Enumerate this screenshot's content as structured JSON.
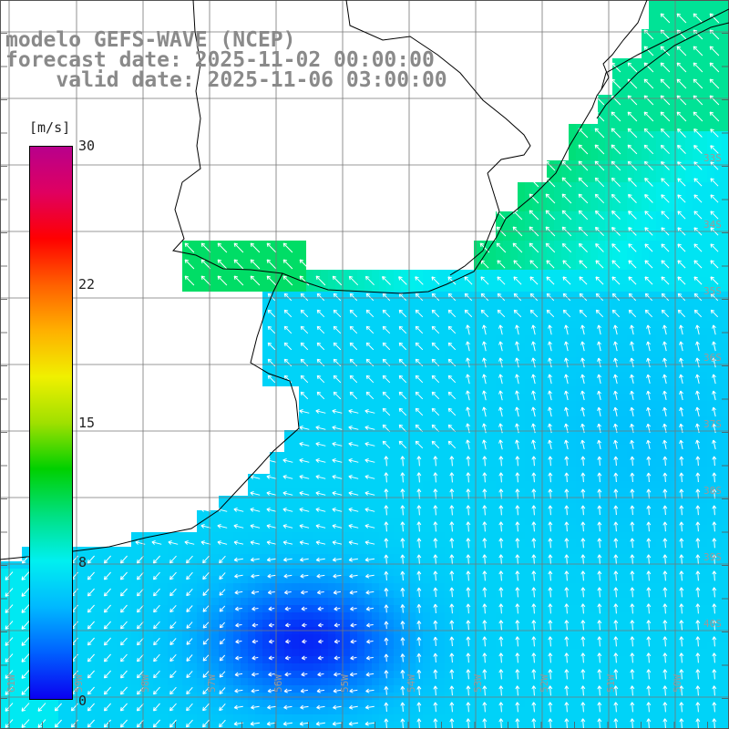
{
  "header": {
    "line1": "modelo GEFS-WAVE (NCEP)",
    "line2": "forecast date: 2025-11-02 00:00:00",
    "line3": "    valid date: 2025-11-06 03:00:00"
  },
  "colorbar": {
    "unit": "[m/s]",
    "ticks": [
      "30",
      "22",
      "15",
      "8",
      "0"
    ],
    "range": [
      0,
      30
    ],
    "stops": [
      "#0a00f0",
      "#0060ff",
      "#00b8ff",
      "#00f0f0",
      "#00e080",
      "#00d000",
      "#a0e000",
      "#f0f000",
      "#ffb000",
      "#ff6000",
      "#ff0000",
      "#e00060",
      "#b8008c"
    ]
  },
  "map": {
    "lon_labels": [
      "61W",
      "59W",
      "58W",
      "57W",
      "56W",
      "55W",
      "54W",
      "53W",
      "52W",
      "51W",
      "50W"
    ],
    "lat_labels": [
      "33S",
      "34S",
      "35S",
      "36S",
      "37S",
      "38S",
      "39S",
      "40S"
    ],
    "wind_speed_field": {
      "units": "m/s",
      "general_direction": "from SE (arrows point NW)",
      "coastal_near_shore": 10,
      "open_ocean": 6,
      "southern_minimum": 1
    }
  }
}
